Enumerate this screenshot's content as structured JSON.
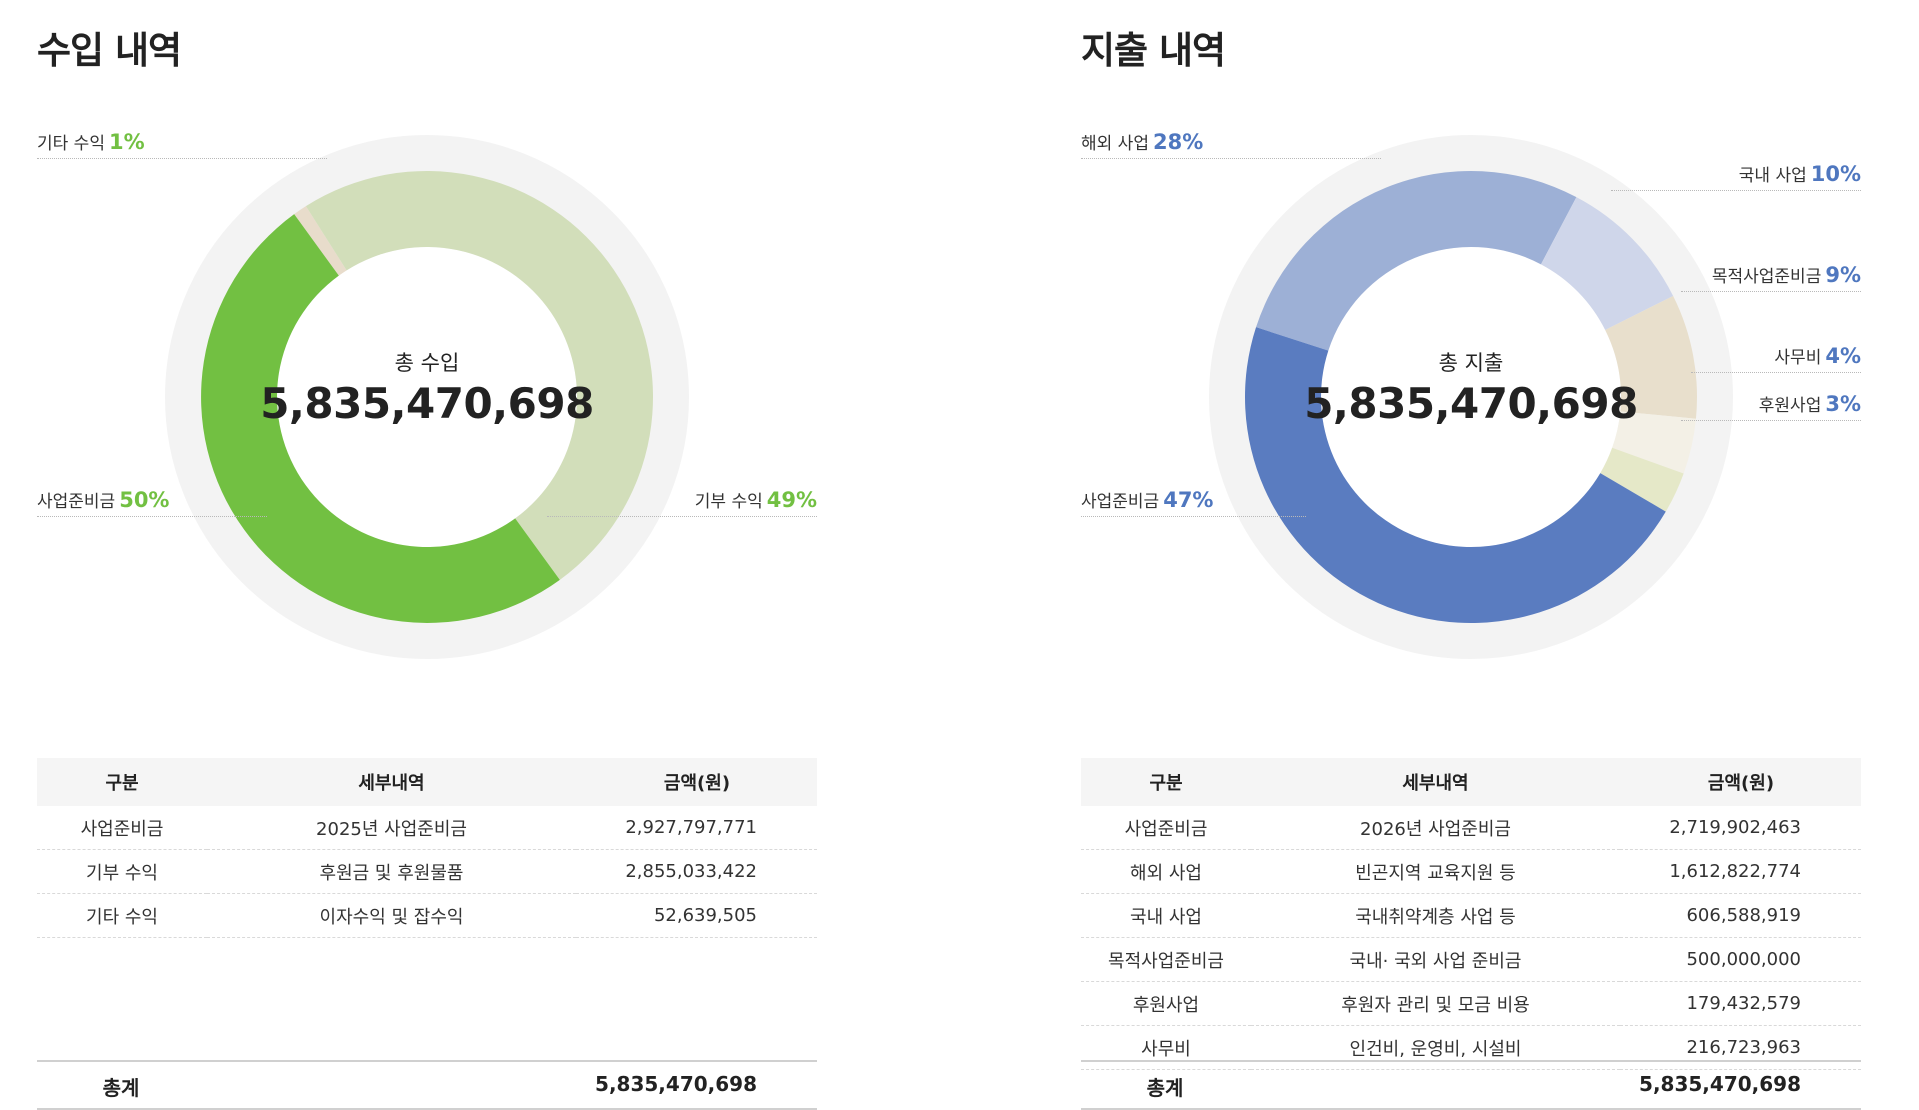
{
  "income": {
    "title": "수입 내역",
    "center_label": "총 수입",
    "center_value": "5,835,470,698",
    "chart_data": {
      "type": "pie",
      "slices": [
        {
          "label": "기타 수익",
          "percent": 1,
          "color": "#e8dccb"
        },
        {
          "label": "기부 수익",
          "percent": 49,
          "color": "#d2deba"
        },
        {
          "label": "사업준비금",
          "percent": 50,
          "color": "#72c042"
        }
      ]
    },
    "callouts": [
      {
        "label": "기타 수익",
        "pct": "1%"
      },
      {
        "label": "사업준비금",
        "pct": "50%"
      },
      {
        "label": "기부 수익",
        "pct": "49%"
      }
    ],
    "pct_color": "#72c042",
    "table": {
      "headers": [
        "구분",
        "세부내역",
        "금액(원)"
      ],
      "rows": [
        [
          "사업준비금",
          "2025년 사업준비금",
          "2,927,797,771"
        ],
        [
          "기부 수익",
          "후원금 및 후원물품",
          "2,855,033,422"
        ],
        [
          "기타 수익",
          "이자수익 및 잡수익",
          "52,639,505"
        ]
      ],
      "total_label": "총계",
      "total_value": "5,835,470,698"
    }
  },
  "expense": {
    "title": "지출 내역",
    "center_label": "총 지출",
    "center_value": "5,835,470,698",
    "chart_data": {
      "type": "pie",
      "slices": [
        {
          "label": "해외 사업",
          "percent": 28,
          "color": "#9db0d6"
        },
        {
          "label": "국내 사업",
          "percent": 10,
          "color": "#cfd6ea"
        },
        {
          "label": "목적사업준비금",
          "percent": 9,
          "color": "#e8dfcc"
        },
        {
          "label": "사무비",
          "percent": 4,
          "color": "#f3f0e6"
        },
        {
          "label": "후원사업",
          "percent": 3,
          "color": "#e5e8c8"
        },
        {
          "label": "사업준비금",
          "percent": 47,
          "color": "#5a7cc0"
        }
      ]
    },
    "callouts": [
      {
        "label": "해외 사업",
        "pct": "28%"
      },
      {
        "label": "국내 사업",
        "pct": "10%"
      },
      {
        "label": "목적사업준비금",
        "pct": "9%"
      },
      {
        "label": "사무비",
        "pct": "4%"
      },
      {
        "label": "후원사업",
        "pct": "3%"
      },
      {
        "label": "사업준비금",
        "pct": "47%"
      }
    ],
    "pct_color": "#4f77bf",
    "table": {
      "headers": [
        "구분",
        "세부내역",
        "금액(원)"
      ],
      "rows": [
        [
          "사업준비금",
          "2026년 사업준비금",
          "2,719,902,463"
        ],
        [
          "해외 사업",
          "빈곤지역 교육지원 등",
          "1,612,822,774"
        ],
        [
          "국내 사업",
          "국내취약계층 사업 등",
          "606,588,919"
        ],
        [
          "목적사업준비금",
          "국내· 국외 사업 준비금",
          "500,000,000"
        ],
        [
          "후원사업",
          "후원자 관리 및 모금 비용",
          "179,432,579"
        ],
        [
          "사무비",
          "인건비, 운영비, 시설비",
          "216,723,963"
        ]
      ],
      "total_label": "총계",
      "total_value": "5,835,470,698"
    }
  }
}
